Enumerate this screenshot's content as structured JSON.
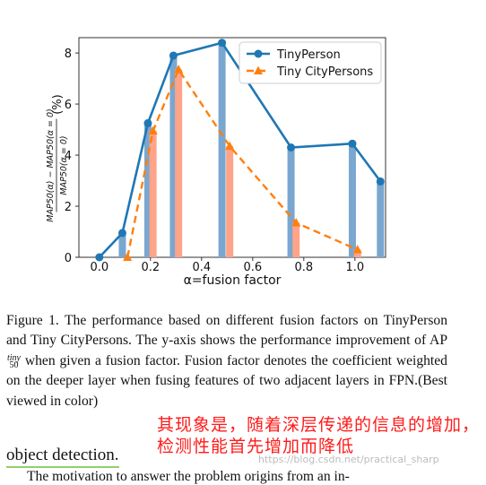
{
  "chart_data": {
    "type": "bar+line",
    "xlabel": "α=fusion factor",
    "ylabel": "MAP50(α) − MAP50(α = 0) / MAP50(α = 0)",
    "ylabel_unit": "(%)",
    "xlim": [
      -0.08,
      1.12
    ],
    "ylim": [
      0,
      8.6
    ],
    "xticks": [
      "0.0",
      "0.2",
      "0.4",
      "0.6",
      "0.8",
      "1.0"
    ],
    "yticks": [
      "0",
      "2",
      "4",
      "6",
      "8"
    ],
    "legend_position": "top-right",
    "series": [
      {
        "name": "TinyPerson",
        "style": "solid line, circle markers",
        "color": "#1f77b4",
        "x": [
          0.0,
          0.09,
          0.19,
          0.29,
          0.48,
          0.75,
          0.99,
          1.1
        ],
        "y": [
          0.0,
          0.95,
          5.25,
          7.9,
          8.4,
          4.3,
          4.45,
          2.97
        ]
      },
      {
        "name": "Tiny CityPersons",
        "style": "dashed line, triangle markers",
        "color": "#ff7f0e",
        "x": [
          0.11,
          0.21,
          0.31,
          0.51,
          0.77,
          1.01
        ],
        "y": [
          0.0,
          4.95,
          7.35,
          4.35,
          1.35,
          0.3
        ]
      }
    ]
  },
  "caption": {
    "label": "Figure 1.",
    "part1": "The performance based on different fusion factors on TinyPerson and Tiny CityPersons. The y-axis shows the performance improvement of AP",
    "ap_sup": "tiny",
    "ap_sub": "50",
    "part2": "when given a fusion factor. Fusion factor denotes the coefficient weighted on the deeper layer when fusing features of two adjacent layers in FPN.(Best viewed in color)"
  },
  "annotation": "其现象是，随着深层传递的信息的增加，检测性能首先增加而降低",
  "section_heading": "object detection.",
  "body_text": "The motivation to answer the problem origins from an in-",
  "watermark": "https://blog.csdn.net/practical_sharp",
  "colors": {
    "blue": "#1f77b4",
    "orange": "#ff7f0e",
    "annotation": "#ff1a1a"
  }
}
